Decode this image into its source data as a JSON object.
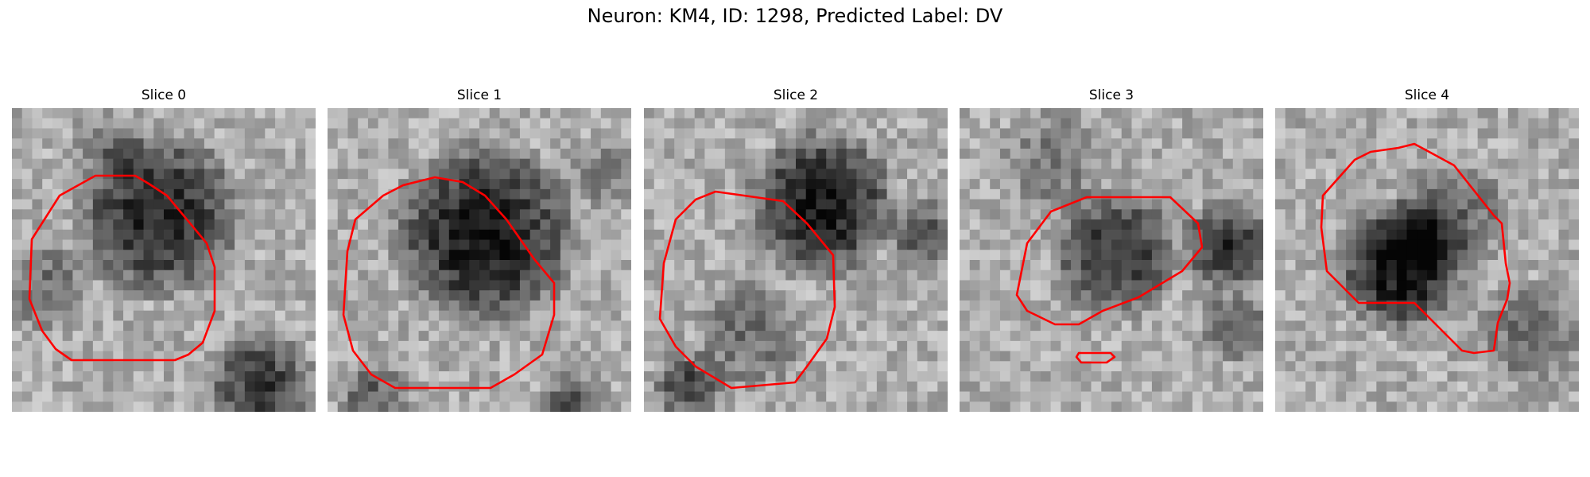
{
  "figure": {
    "title": "Neuron: KM4, ID: 1298, Predicted Label: DV"
  },
  "panels": [
    {
      "title": "Slice 0"
    },
    {
      "title": "Slice 1"
    },
    {
      "title": "Slice 2"
    },
    {
      "title": "Slice 3"
    },
    {
      "title": "Slice 4"
    }
  ],
  "colors": {
    "contour": "#ff0000",
    "background": "#ffffff"
  }
}
